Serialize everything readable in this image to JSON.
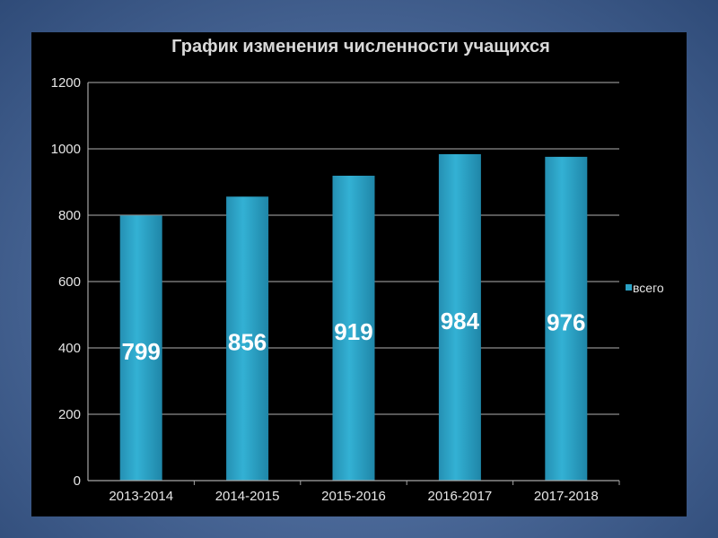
{
  "chart_data": {
    "type": "bar",
    "title": "График изменения численности учащихся",
    "categories": [
      "2013-2014",
      "2014-2015",
      "2015-2016",
      "2016-2017",
      "2017-2018"
    ],
    "series": [
      {
        "name": "всего",
        "values": [
          799,
          856,
          919,
          984,
          976
        ]
      }
    ],
    "ylim": [
      0,
      1200
    ],
    "yticks": [
      0,
      200,
      400,
      600,
      800,
      1000,
      1200
    ],
    "grid": true,
    "legend": "right",
    "bar_color": "#2aa1c4",
    "background": "#000000"
  }
}
